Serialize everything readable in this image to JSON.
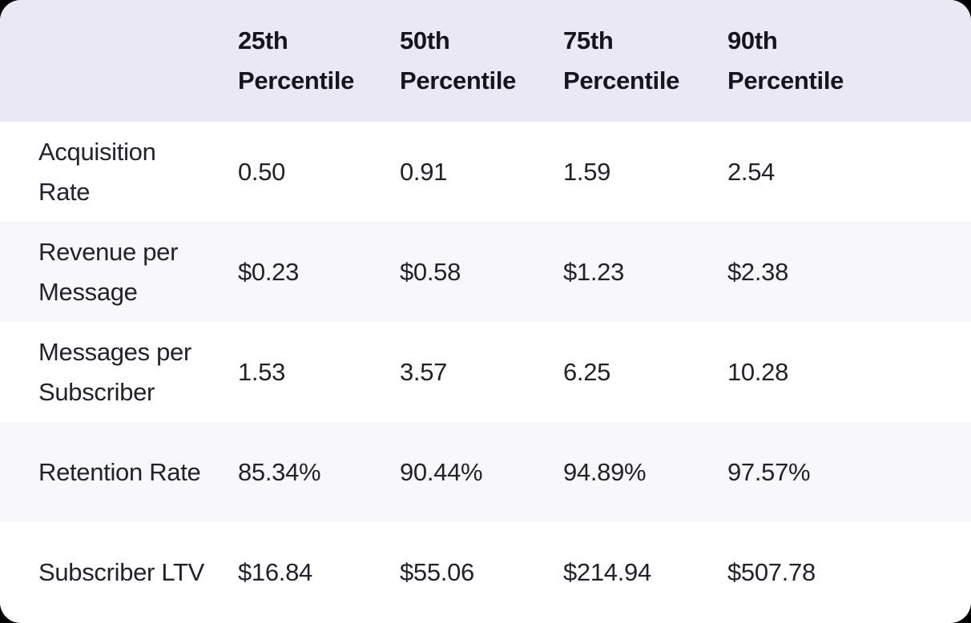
{
  "table": {
    "header": {
      "cells": [
        {
          "lines": []
        },
        {
          "lines": [
            "25th",
            "Percentile"
          ]
        },
        {
          "lines": [
            "50th",
            "Percentile"
          ]
        },
        {
          "lines": [
            "75th",
            "Percentile"
          ]
        },
        {
          "lines": [
            "90th",
            "Percentile"
          ]
        }
      ]
    },
    "rows": [
      {
        "label_lines": [
          "Acquisition",
          "Rate"
        ],
        "values": [
          "0.50",
          "0.91",
          "1.59",
          "2.54"
        ]
      },
      {
        "label_lines": [
          "Revenue per",
          "Message"
        ],
        "values": [
          "$0.23",
          "$0.58",
          "$1.23",
          "$2.38"
        ]
      },
      {
        "label_lines": [
          "Messages per",
          "Subscriber"
        ],
        "values": [
          "1.53",
          "3.57",
          "6.25",
          "10.28"
        ]
      },
      {
        "label_lines": [
          "Retention Rate"
        ],
        "values": [
          "85.34%",
          "90.44%",
          "94.89%",
          "97.57%"
        ]
      },
      {
        "label_lines": [
          "Subscriber LTV"
        ],
        "values": [
          "$16.84",
          "$55.06",
          "$214.94",
          "$507.78"
        ]
      }
    ]
  },
  "chart_data": {
    "type": "table",
    "title": "",
    "columns": [
      "25th Percentile",
      "50th Percentile",
      "75th Percentile",
      "90th Percentile"
    ],
    "row_labels": [
      "Acquisition Rate",
      "Revenue per Message",
      "Messages per Subscriber",
      "Retention Rate",
      "Subscriber LTV"
    ],
    "series": [
      {
        "name": "Acquisition Rate",
        "unit": "",
        "values": [
          0.5,
          0.91,
          1.59,
          2.54
        ],
        "display": [
          "0.50",
          "0.91",
          "1.59",
          "2.54"
        ]
      },
      {
        "name": "Revenue per Message",
        "unit": "$",
        "values": [
          0.23,
          0.58,
          1.23,
          2.38
        ],
        "display": [
          "$0.23",
          "$0.58",
          "$1.23",
          "$2.38"
        ]
      },
      {
        "name": "Messages per Subscriber",
        "unit": "",
        "values": [
          1.53,
          3.57,
          6.25,
          10.28
        ],
        "display": [
          "1.53",
          "3.57",
          "6.25",
          "10.28"
        ]
      },
      {
        "name": "Retention Rate",
        "unit": "%",
        "values": [
          85.34,
          90.44,
          94.89,
          97.57
        ],
        "display": [
          "85.34%",
          "90.44%",
          "94.89%",
          "97.57%"
        ]
      },
      {
        "name": "Subscriber LTV",
        "unit": "$",
        "values": [
          16.84,
          55.06,
          214.94,
          507.78
        ],
        "display": [
          "$16.84",
          "$55.06",
          "$214.94",
          "$507.78"
        ]
      }
    ],
    "layout": {
      "header_background": "#e9e8f4",
      "striped_row_background": "#f8f8fa",
      "row_background": "#ffffff",
      "text_color": "#232229",
      "header_text_color": "#16151c",
      "corner_radius_px": 26
    }
  }
}
